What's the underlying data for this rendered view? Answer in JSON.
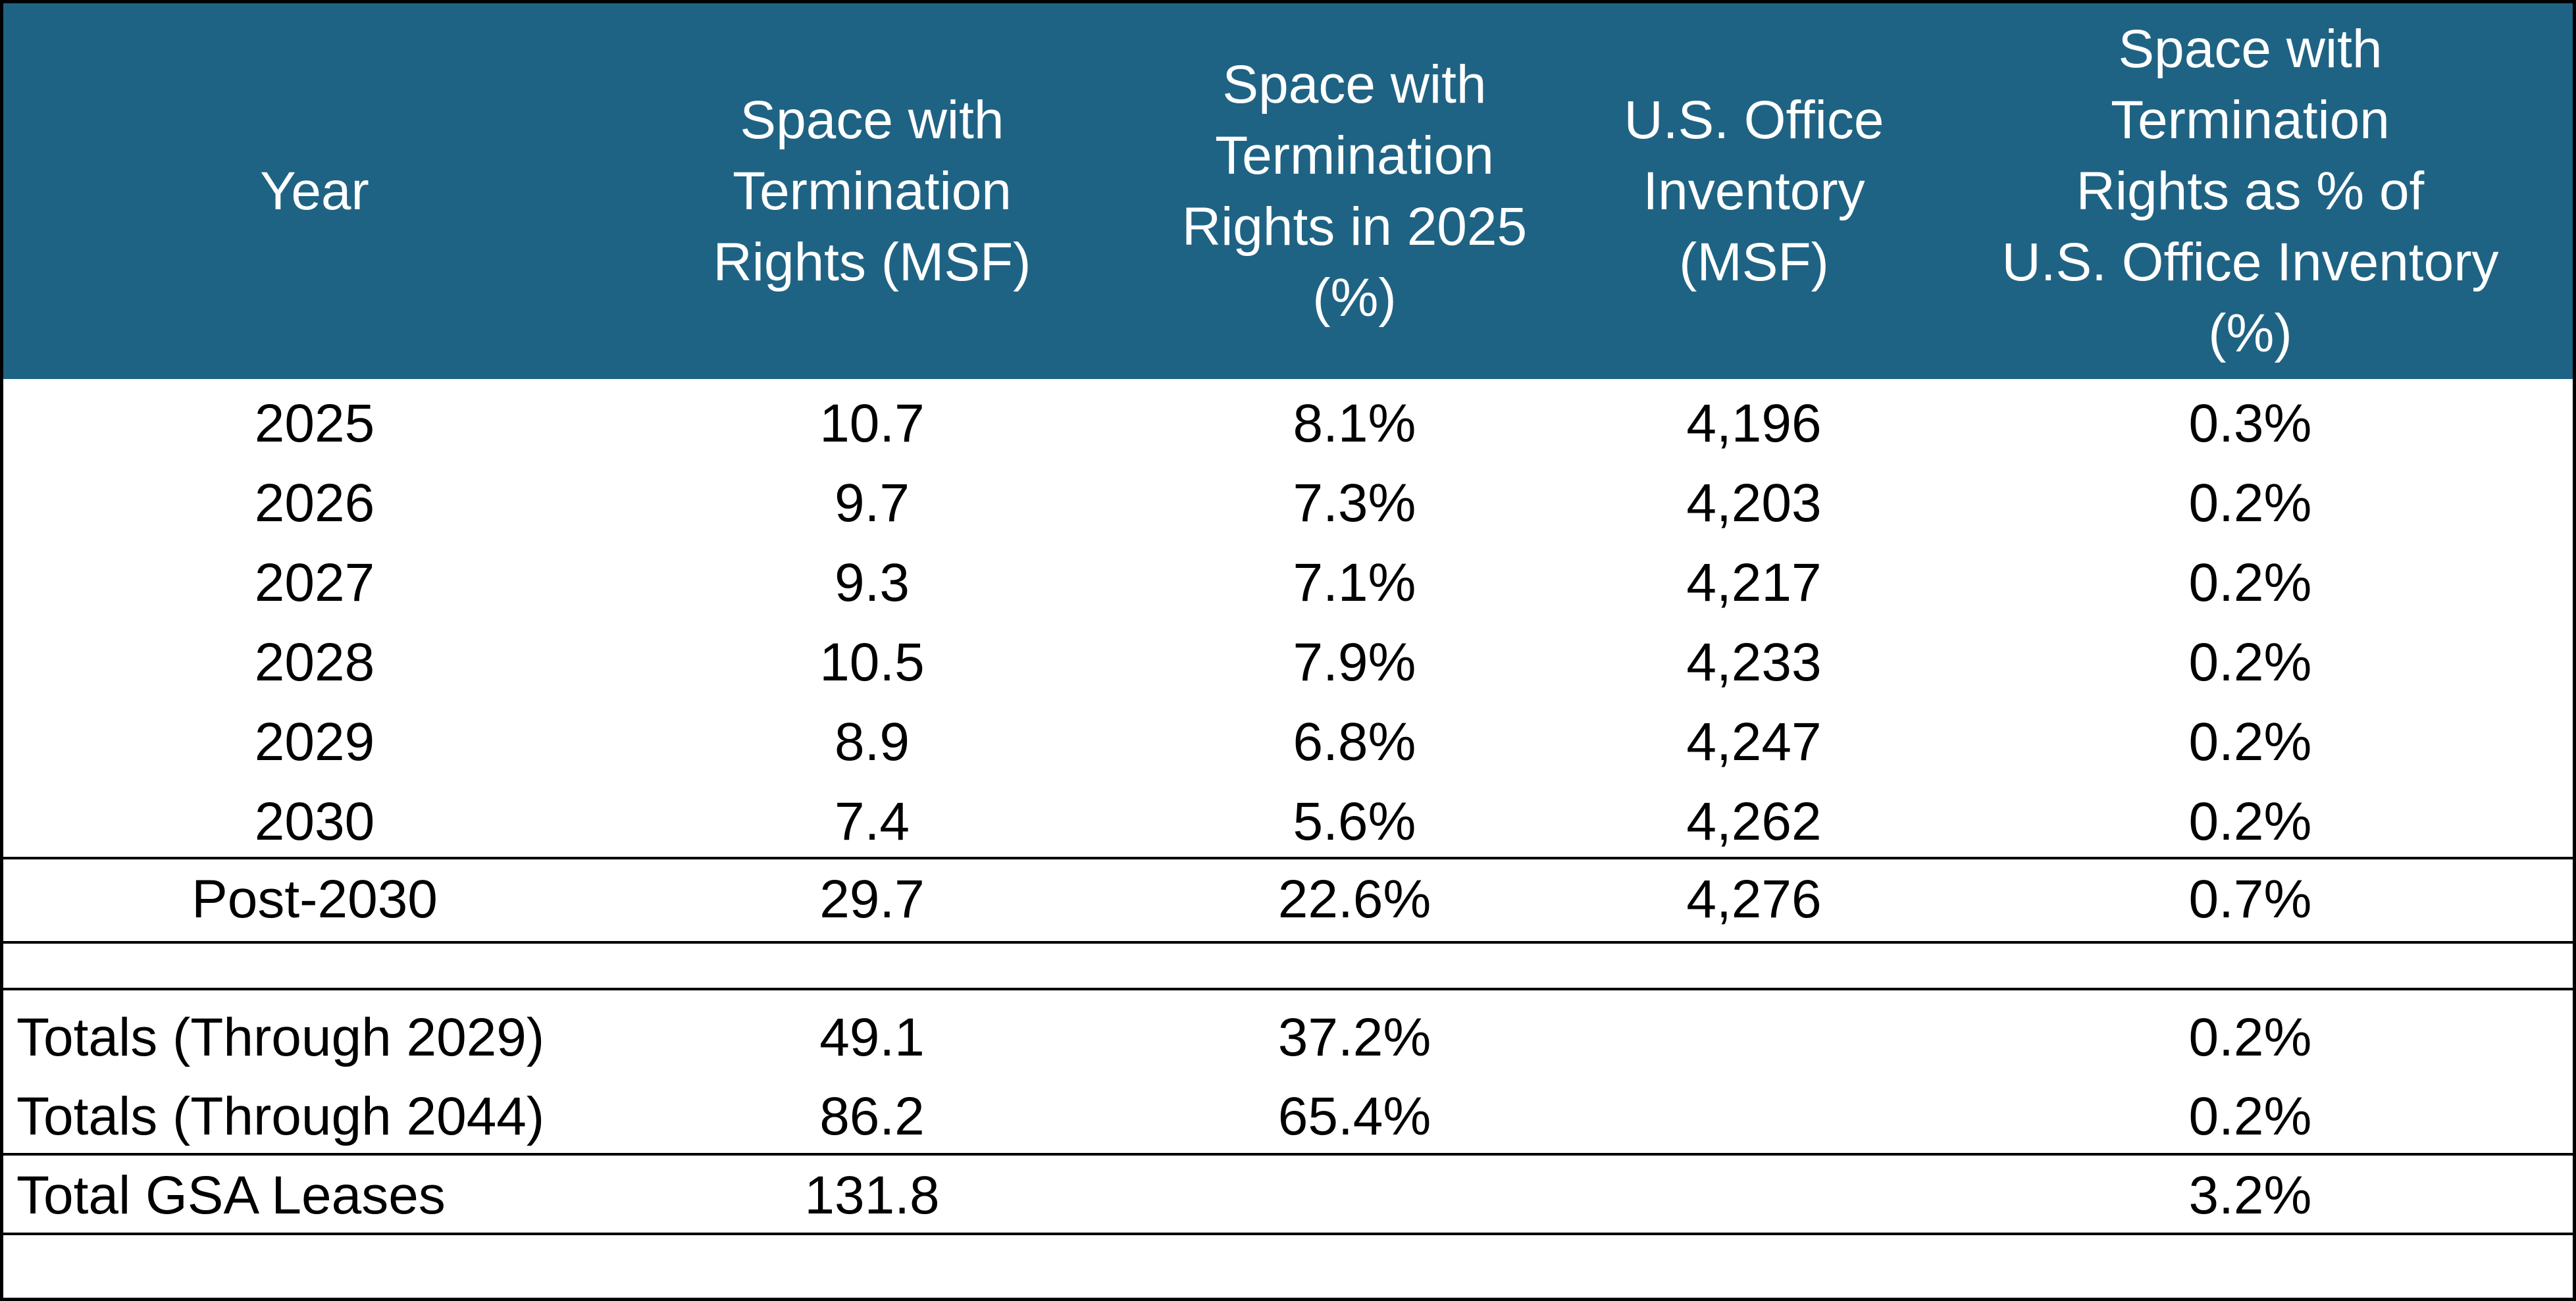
{
  "table": {
    "headers": [
      "Year",
      "Space with Termination Rights (MSF)",
      "Space with Termination Rights in 2025 (%)",
      "U.S. Office Inventory (MSF)",
      "Space with Termination Rights as % of U.S. Office Inventory (%)"
    ],
    "header_lines": [
      [
        "Year"
      ],
      [
        "Space with",
        "Termination",
        "Rights (MSF)"
      ],
      [
        "Space with",
        "Termination",
        "Rights in 2025",
        "(%)"
      ],
      [
        "U.S. Office",
        "Inventory",
        "(MSF)"
      ],
      [
        "Space with",
        "Termination",
        "Rights as % of",
        "U.S. Office Inventory",
        "(%)"
      ]
    ],
    "rows": [
      [
        "2025",
        "10.7",
        "8.1%",
        "4,196",
        "0.3%"
      ],
      [
        "2026",
        "9.7",
        "7.3%",
        "4,203",
        "0.2%"
      ],
      [
        "2027",
        "9.3",
        "7.1%",
        "4,217",
        "0.2%"
      ],
      [
        "2028",
        "10.5",
        "7.9%",
        "4,233",
        "0.2%"
      ],
      [
        "2029",
        "8.9",
        "6.8%",
        "4,247",
        "0.2%"
      ],
      [
        "2030",
        "7.4",
        "5.6%",
        "4,262",
        "0.2%"
      ]
    ],
    "post_row": [
      "Post-2030",
      "29.7",
      "22.6%",
      "4,276",
      "0.7%"
    ],
    "totals": [
      [
        "Totals (Through 2029)",
        "49.1",
        "37.2%",
        "",
        "0.2%"
      ],
      [
        "Totals (Through 2044)",
        "86.2",
        "65.4%",
        "",
        "0.2%"
      ]
    ],
    "gsa_row": [
      "Total GSA Leases",
      "131.8",
      "",
      "",
      "3.2%"
    ]
  },
  "colors": {
    "header_bg": "#1f6384",
    "header_text": "#ffffff",
    "text": "#000000",
    "border": "#000000"
  }
}
